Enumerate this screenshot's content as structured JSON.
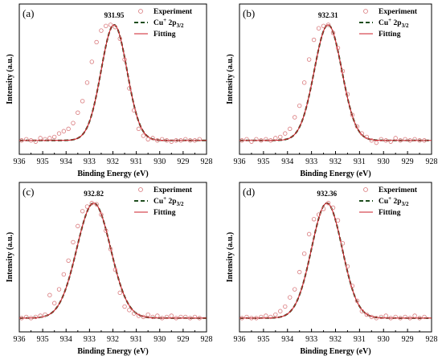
{
  "chart_data": [
    {
      "type": "scatter",
      "panel_label": "(a)",
      "xlabel": "Binding Energy (eV)",
      "ylabel": "Intensity (a.u.)",
      "xlim": [
        936,
        928
      ],
      "x_reversed": true,
      "x_ticks": [
        "936",
        "935",
        "934",
        "933",
        "932",
        "931",
        "930",
        "929",
        "928"
      ],
      "peak_label": "931.95",
      "peak_center": 931.95,
      "peak_fwhm": 1.3,
      "legend_position": "top-right",
      "series": [
        {
          "name": "Experiment",
          "style": "open-circle",
          "color": "#d9797c",
          "x": [
            935.9,
            935.7,
            935.5,
            935.3,
            935.1,
            934.9,
            934.7,
            934.5,
            934.3,
            934.1,
            933.9,
            933.7,
            933.5,
            933.3,
            933.1,
            932.9,
            932.7,
            932.5,
            932.3,
            932.1,
            931.9,
            931.7,
            931.5,
            931.3,
            931.1,
            930.9,
            930.7,
            930.5,
            930.3,
            930.1,
            929.9,
            929.7,
            929.5,
            929.3,
            929.1,
            928.9,
            928.7,
            928.5,
            928.3
          ],
          "y": [
            0.0,
            0.01,
            0.0,
            -0.01,
            0.02,
            0.01,
            0.02,
            0.03,
            0.06,
            0.08,
            0.1,
            0.15,
            0.24,
            0.34,
            0.5,
            0.68,
            0.85,
            0.95,
            0.99,
            1.0,
            0.98,
            0.88,
            0.7,
            0.45,
            0.26,
            0.1,
            0.04,
            0.01,
            0.02,
            0.0,
            0.01,
            0.0,
            -0.01,
            0.0,
            0.0,
            0.01,
            0.0,
            0.0,
            0.01
          ]
        },
        {
          "name": "Cu⁺ 2p3/2",
          "style": "dashed",
          "color": "#1e4d1e"
        },
        {
          "name": "Fitting",
          "style": "solid",
          "color": "#cc1f2a"
        }
      ]
    },
    {
      "type": "scatter",
      "panel_label": "(b)",
      "xlabel": "Binding Energy (eV)",
      "ylabel": "Intensity (a.u.)",
      "xlim": [
        936,
        928
      ],
      "x_reversed": true,
      "x_ticks": [
        "936",
        "935",
        "934",
        "933",
        "932",
        "931",
        "930",
        "929",
        "928"
      ],
      "peak_label": "932.31",
      "peak_center": 932.31,
      "peak_fwhm": 1.35,
      "legend_position": "top-right",
      "series": [
        {
          "name": "Experiment",
          "style": "open-circle",
          "color": "#d9797c",
          "x": [
            935.9,
            935.7,
            935.5,
            935.3,
            935.1,
            934.9,
            934.7,
            934.5,
            934.3,
            934.1,
            933.9,
            933.7,
            933.5,
            933.3,
            933.1,
            932.9,
            932.7,
            932.5,
            932.3,
            932.1,
            931.9,
            931.7,
            931.5,
            931.3,
            931.1,
            930.9,
            930.7,
            930.5,
            930.3,
            930.1,
            929.9,
            929.7,
            929.5,
            929.3,
            929.1,
            928.9,
            928.7,
            928.5,
            928.3
          ],
          "y": [
            0.0,
            0.01,
            -0.01,
            0.01,
            0.0,
            0.01,
            0.0,
            0.02,
            0.03,
            0.06,
            0.1,
            0.2,
            0.3,
            0.5,
            0.7,
            0.87,
            0.97,
            0.99,
            1.0,
            0.93,
            0.8,
            0.6,
            0.4,
            0.22,
            0.12,
            0.06,
            0.03,
            0.0,
            -0.02,
            0.01,
            0.0,
            -0.01,
            0.02,
            0.0,
            0.01,
            0.0,
            0.01,
            0.0,
            0.0
          ]
        },
        {
          "name": "Cu⁺ 2p3/2",
          "style": "dashed",
          "color": "#1e4d1e"
        },
        {
          "name": "Fitting",
          "style": "solid",
          "color": "#cc1f2a"
        }
      ]
    },
    {
      "type": "scatter",
      "panel_label": "(c)",
      "xlabel": "Binding Energy (eV)",
      "ylabel": "Intensity (a.u.)",
      "xlim": [
        936,
        928
      ],
      "x_reversed": true,
      "x_ticks": [
        "936",
        "935",
        "934",
        "933",
        "932",
        "931",
        "930",
        "929",
        "928"
      ],
      "peak_label": "932.82",
      "peak_center": 932.82,
      "peak_fwhm": 1.7,
      "legend_position": "top-right",
      "series": [
        {
          "name": "Experiment",
          "style": "open-circle",
          "color": "#d9797c",
          "x": [
            935.9,
            935.7,
            935.5,
            935.3,
            935.1,
            934.9,
            934.7,
            934.5,
            934.3,
            934.1,
            933.9,
            933.7,
            933.5,
            933.3,
            933.1,
            932.9,
            932.7,
            932.5,
            932.3,
            932.1,
            931.9,
            931.7,
            931.5,
            931.3,
            931.1,
            930.9,
            930.7,
            930.5,
            930.3,
            930.1,
            929.9,
            929.7,
            929.5,
            929.3,
            929.1,
            928.9,
            928.7,
            928.5,
            928.3
          ],
          "y": [
            0.0,
            0.01,
            0.0,
            0.01,
            0.02,
            0.03,
            0.2,
            0.13,
            0.25,
            0.38,
            0.5,
            0.66,
            0.8,
            0.93,
            0.97,
            1.0,
            0.99,
            0.9,
            0.76,
            0.6,
            0.42,
            0.22,
            0.1,
            0.07,
            0.04,
            0.02,
            0.01,
            0.03,
            0.01,
            0.02,
            0.0,
            0.01,
            0.02,
            0.0,
            0.01,
            0.01,
            0.0,
            0.01,
            0.0
          ]
        },
        {
          "name": "Cu⁺ 2p3/2",
          "style": "dashed",
          "color": "#1e4d1e"
        },
        {
          "name": "Fitting",
          "style": "solid",
          "color": "#cc1f2a"
        }
      ]
    },
    {
      "type": "scatter",
      "panel_label": "(d)",
      "xlabel": "Binding Energy (eV)",
      "ylabel": "Intensity (a.u.)",
      "xlim": [
        936,
        928
      ],
      "x_reversed": true,
      "x_ticks": [
        "936",
        "935",
        "934",
        "933",
        "932",
        "931",
        "930",
        "929",
        "928"
      ],
      "peak_label": "932.36",
      "peak_center": 932.36,
      "peak_fwhm": 1.5,
      "legend_position": "top-right",
      "series": [
        {
          "name": "Experiment",
          "style": "open-circle",
          "color": "#d9797c",
          "x": [
            935.9,
            935.7,
            935.5,
            935.3,
            935.1,
            934.9,
            934.7,
            934.5,
            934.3,
            934.1,
            933.9,
            933.7,
            933.5,
            933.3,
            933.1,
            932.9,
            932.7,
            932.5,
            932.3,
            932.1,
            931.9,
            931.7,
            931.5,
            931.3,
            931.1,
            930.9,
            930.7,
            930.5,
            930.3,
            930.1,
            929.9,
            929.7,
            929.5,
            929.3,
            929.1,
            928.9,
            928.7,
            928.5,
            928.3
          ],
          "y": [
            0.0,
            0.01,
            0.0,
            0.0,
            0.01,
            0.02,
            0.01,
            0.03,
            0.06,
            0.1,
            0.18,
            0.25,
            0.4,
            0.56,
            0.73,
            0.86,
            0.9,
            0.95,
            1.0,
            0.96,
            0.85,
            0.65,
            0.45,
            0.28,
            0.15,
            0.06,
            0.03,
            0.01,
            0.0,
            0.01,
            0.02,
            0.0,
            0.01,
            0.0,
            0.01,
            0.0,
            0.02,
            0.0,
            0.01
          ]
        },
        {
          "name": "Cu⁺ 2p3/2",
          "style": "dashed",
          "color": "#1e4d1e"
        },
        {
          "name": "Fitting",
          "style": "solid",
          "color": "#cc1f2a"
        }
      ]
    }
  ]
}
